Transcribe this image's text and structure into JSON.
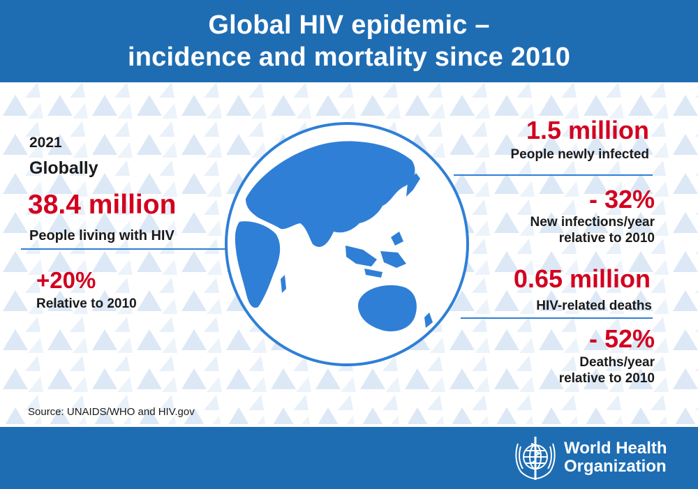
{
  "header": {
    "title_line1": "Global HIV epidemic –",
    "title_line2": "incidence and mortality since 2010"
  },
  "left": {
    "year": "2021",
    "scope": "Globally",
    "living_value": "38.4 million",
    "living_label": "People living with HIV",
    "change_value": "+20%",
    "change_label": "Relative to 2010"
  },
  "right": {
    "new_infected_value": "1.5 million",
    "new_infected_label": "People newly infected",
    "new_infections_change_value": "- 32%",
    "new_infections_change_label_1": "New infections/year",
    "new_infections_change_label_2": "relative to 2010",
    "deaths_value": "0.65 million",
    "deaths_label": "HIV-related deaths",
    "deaths_change_value": "- 52%",
    "deaths_change_label_1": "Deaths/year",
    "deaths_change_label_2": "relative to 2010"
  },
  "source": "Source: UNAIDS/WHO and HIV.gov",
  "logo": {
    "line1": "World Health",
    "line2": "Organization",
    "icon": "who-emblem-icon"
  },
  "colors": {
    "brand_blue": "#1e6db3",
    "accent_red": "#d2001f",
    "globe_blue": "#2f7fd6"
  }
}
